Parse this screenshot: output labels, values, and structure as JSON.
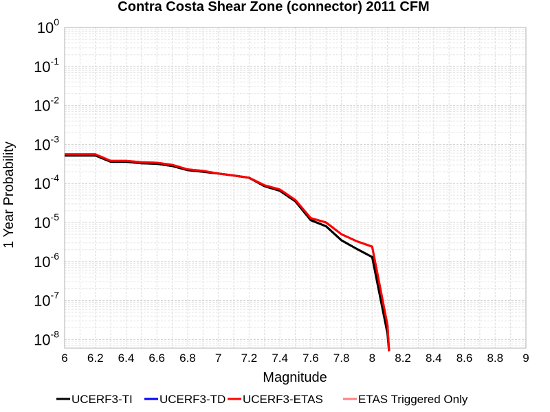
{
  "chart_data": {
    "type": "line",
    "title": "Contra Costa Shear Zone (connector) 2011 CFM",
    "xlabel": "Magnitude",
    "ylabel": "1 Year Probability",
    "xlim": [
      6,
      9
    ],
    "ylim": [
      6e-09,
      1
    ],
    "yscale": "log",
    "grid": true,
    "legend_position": "bottom",
    "x_ticks": [
      "6",
      "6.2",
      "6.4",
      "6.6",
      "6.8",
      "7",
      "7.2",
      "7.4",
      "7.6",
      "7.8",
      "8",
      "8.2",
      "8.4",
      "8.6",
      "8.8",
      "9"
    ],
    "y_ticks": [
      {
        "base": "10",
        "exp": "0"
      },
      {
        "base": "10",
        "exp": "-1"
      },
      {
        "base": "10",
        "exp": "-2"
      },
      {
        "base": "10",
        "exp": "-3"
      },
      {
        "base": "10",
        "exp": "-4"
      },
      {
        "base": "10",
        "exp": "-5"
      },
      {
        "base": "10",
        "exp": "-6"
      },
      {
        "base": "10",
        "exp": "-7"
      },
      {
        "base": "10",
        "exp": "-8"
      }
    ],
    "series": [
      {
        "name": "UCERF3-TI",
        "color": "#000000",
        "x": [
          6.0,
          6.1,
          6.2,
          6.3,
          6.4,
          6.5,
          6.6,
          6.7,
          6.8,
          6.9,
          7.0,
          7.1,
          7.2,
          7.3,
          7.4,
          7.5,
          7.6,
          7.7,
          7.8,
          7.9,
          8.0,
          8.1,
          8.11
        ],
        "y": [
          0.00052,
          0.00052,
          0.00052,
          0.00036,
          0.00036,
          0.00033,
          0.00032,
          0.00028,
          0.00022,
          0.0002,
          0.00018,
          0.00016,
          0.00014,
          8.5e-05,
          6.5e-05,
          3.5e-05,
          1.15e-05,
          8e-06,
          3.5e-06,
          2.1e-06,
          1.3e-06,
          1.4e-08,
          5e-09
        ]
      },
      {
        "name": "UCERF3-TD",
        "color": "#0000ff",
        "x": [],
        "y": []
      },
      {
        "name": "UCERF3-ETAS",
        "color": "#ff0000",
        "x": [
          6.0,
          6.1,
          6.2,
          6.3,
          6.4,
          6.5,
          6.6,
          6.7,
          6.8,
          6.9,
          7.0,
          7.1,
          7.2,
          7.3,
          7.4,
          7.5,
          7.6,
          7.7,
          7.8,
          7.9,
          8.0,
          8.1,
          8.11
        ],
        "y": [
          0.00056,
          0.00056,
          0.00056,
          0.00038,
          0.00038,
          0.00035,
          0.00034,
          0.0003,
          0.00023,
          0.00021,
          0.00018,
          0.00016,
          0.00014,
          9e-05,
          7e-05,
          3.8e-05,
          1.3e-05,
          1e-05,
          5e-06,
          3.3e-06,
          2.4e-06,
          2.3e-08,
          5e-09
        ]
      },
      {
        "name": "ETAS Triggered Only",
        "color": "#ff8080",
        "x": [],
        "y": []
      }
    ]
  }
}
